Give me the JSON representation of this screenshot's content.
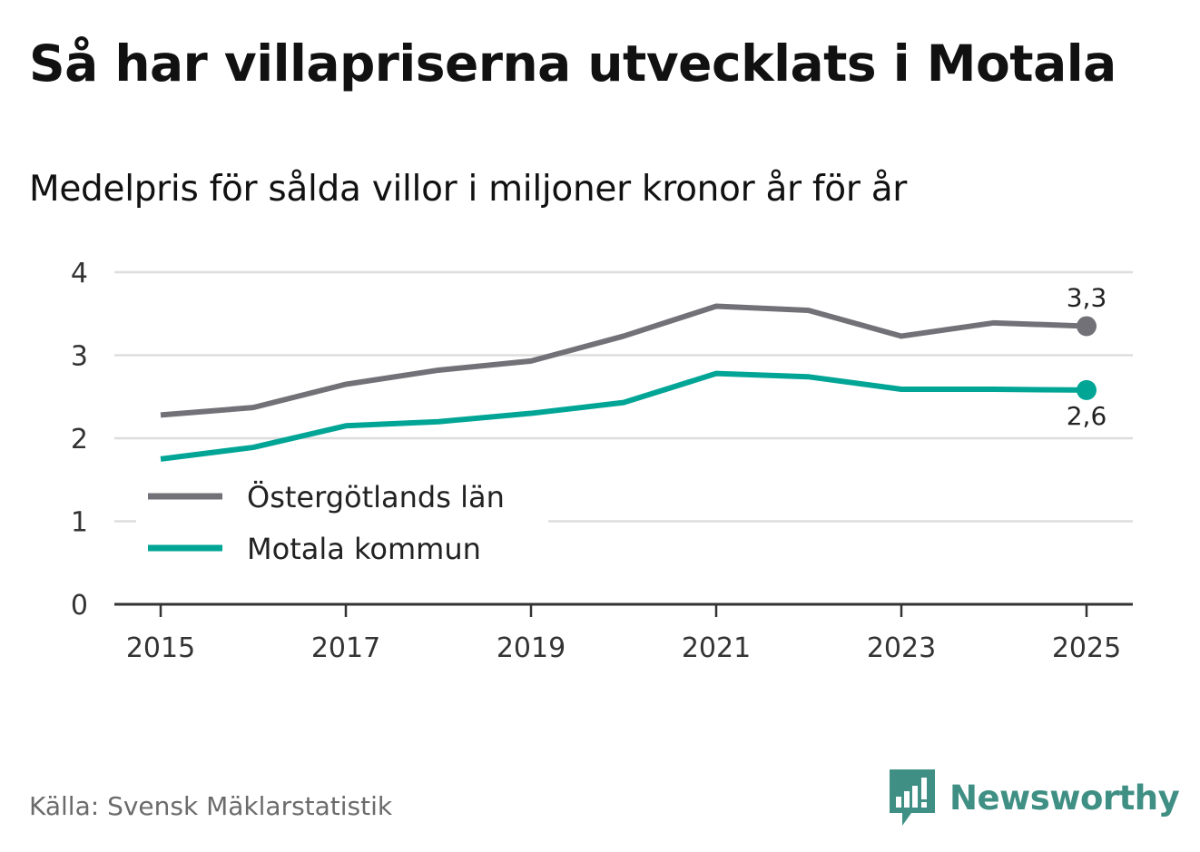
{
  "title": "Så har villapriserna utvecklats i Motala",
  "subtitle": "Medelpris för sålda villor i miljoner kronor år för år",
  "source": "Källa: Svensk Mäklarstatistik",
  "brand": {
    "name": "Newsworthy",
    "icon": "newsworthy-logo-icon",
    "color": "#3f8f84"
  },
  "chart_data": {
    "type": "line",
    "title": "Så har villapriserna utvecklats i Motala",
    "subtitle": "Medelpris för sålda villor i miljoner kronor år för år",
    "xlabel": "",
    "ylabel": "",
    "x": [
      2015,
      2016,
      2017,
      2018,
      2019,
      2020,
      2021,
      2022,
      2023,
      2024,
      2025
    ],
    "x_ticks": [
      "2015",
      "2017",
      "2019",
      "2021",
      "2023",
      "2025"
    ],
    "y_ticks": [
      "0",
      "1",
      "2",
      "3",
      "4"
    ],
    "ylim": [
      0,
      4
    ],
    "xlim": [
      2015,
      2025
    ],
    "grid": true,
    "legend_position": "middle-left",
    "series": [
      {
        "name": "Östergötlands län",
        "color": "#727177",
        "values": [
          2.28,
          2.37,
          2.65,
          2.82,
          2.93,
          3.23,
          3.59,
          3.54,
          3.23,
          3.39,
          3.35
        ],
        "end_label": "3,3"
      },
      {
        "name": "Motala kommun",
        "color": "#00a596",
        "values": [
          1.75,
          1.89,
          2.15,
          2.2,
          2.3,
          2.43,
          2.78,
          2.74,
          2.59,
          2.59,
          2.58
        ],
        "end_label": "2,6"
      }
    ]
  }
}
